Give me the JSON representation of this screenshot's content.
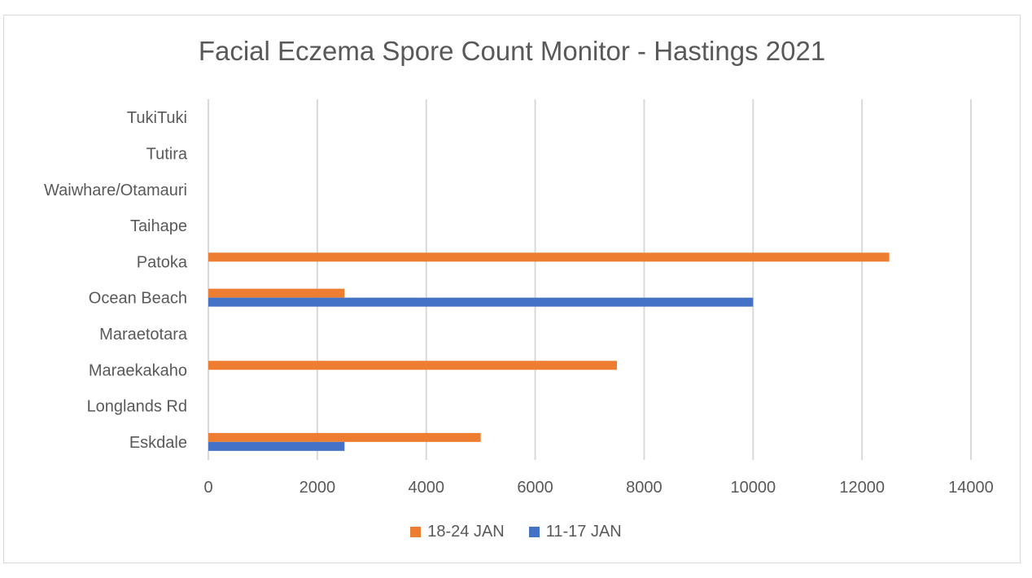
{
  "chart_data": {
    "type": "bar",
    "orientation": "horizontal",
    "title": "Facial Eczema Spore Count Monitor - Hastings 2021",
    "categories": [
      "Eskdale",
      "Longlands Rd",
      "Maraekakaho",
      "Maraetotara",
      "Ocean Beach",
      "Patoka",
      "Taihape",
      "Waiwhare/Otamauri",
      "Tutira",
      "TukiTuki"
    ],
    "series": [
      {
        "name": "18-24 JAN",
        "color": "#ed7d31",
        "values": [
          5000,
          null,
          7500,
          null,
          2500,
          12500,
          null,
          null,
          null,
          null
        ]
      },
      {
        "name": "11-17 JAN",
        "color": "#4472c4",
        "values": [
          2500,
          null,
          null,
          null,
          10000,
          null,
          null,
          null,
          null,
          null
        ]
      }
    ],
    "xlim": [
      0,
      14000
    ],
    "xticks": [
      "0",
      "2000",
      "4000",
      "6000",
      "8000",
      "10000",
      "12000",
      "14000"
    ],
    "grid": true,
    "legend_position": "bottom"
  }
}
